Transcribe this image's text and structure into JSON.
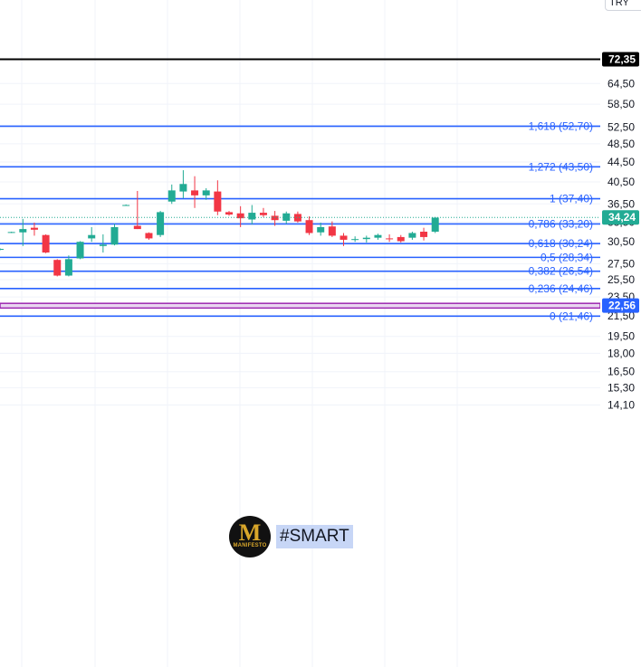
{
  "currency_selector": {
    "label": "TRY"
  },
  "brand": {
    "logo_letter": "M",
    "logo_text": "MANIFESTO",
    "hashtag": "#SMART"
  },
  "colors": {
    "up": "#22ab94",
    "down": "#f23645",
    "fib": "#2962ff",
    "last_price": "#22ab94",
    "band": "#9c27b0",
    "top_line": "#000000"
  },
  "chart_data": {
    "type": "candlestick",
    "title": "",
    "xlabel": "",
    "ylabel": "",
    "y_scale": "log",
    "ylim": [
      13.5,
      76.5
    ],
    "grid": true,
    "y_ticks": [
      "64,50",
      "58,50",
      "52,50",
      "48,50",
      "44,50",
      "40,50",
      "36,50",
      "33,50",
      "30,50",
      "27,50",
      "25,50",
      "23,50",
      "21,50",
      "19,50",
      "18,00",
      "16,50",
      "15,30",
      "14,10"
    ],
    "y_tick_values": [
      64.5,
      58.5,
      52.5,
      48.5,
      44.5,
      40.5,
      36.5,
      33.5,
      30.5,
      27.5,
      25.5,
      23.5,
      21.5,
      19.5,
      18.0,
      16.5,
      15.3,
      14.1
    ],
    "fib_levels": [
      {
        "label": "1,618 (52,70)",
        "ratio": 1.618,
        "value": 52.7
      },
      {
        "label": "1,272 (43,50)",
        "ratio": 1.272,
        "value": 43.5
      },
      {
        "label": "1 (37,40)",
        "ratio": 1,
        "value": 37.4
      },
      {
        "label": "0,786 (33,20)",
        "ratio": 0.786,
        "value": 33.2
      },
      {
        "label": "0,618 (30,24)",
        "ratio": 0.618,
        "value": 30.24
      },
      {
        "label": "0,5 (28,34)",
        "ratio": 0.5,
        "value": 28.34
      },
      {
        "label": "0,382 (26,54)",
        "ratio": 0.382,
        "value": 26.54
      },
      {
        "label": "0,236 (24,46)",
        "ratio": 0.236,
        "value": 24.46
      },
      {
        "label": "0 (21,46)",
        "ratio": 0,
        "value": 21.46
      }
    ],
    "horizontal_lines": [
      {
        "value": 72.35,
        "label": "72,35"
      }
    ],
    "band": {
      "low": 22.3,
      "high": 22.8,
      "label": "22,56",
      "value": 22.56
    },
    "last_price": {
      "value": 34.24,
      "label": "34,24"
    },
    "candles": [
      {
        "o": 29.4,
        "h": 29.6,
        "l": 29.3,
        "c": 29.5
      },
      {
        "o": 31.9,
        "h": 32.0,
        "l": 31.8,
        "c": 31.95
      },
      {
        "o": 31.9,
        "h": 34.0,
        "l": 29.9,
        "c": 32.4
      },
      {
        "o": 32.6,
        "h": 33.4,
        "l": 31.4,
        "c": 32.3
      },
      {
        "o": 31.5,
        "h": 31.6,
        "l": 28.9,
        "c": 29.0
      },
      {
        "o": 28.0,
        "h": 28.1,
        "l": 25.9,
        "c": 26.0
      },
      {
        "o": 26.0,
        "h": 28.6,
        "l": 25.9,
        "c": 28.1
      },
      {
        "o": 28.2,
        "h": 30.6,
        "l": 28.1,
        "c": 30.5
      },
      {
        "o": 31.0,
        "h": 32.7,
        "l": 30.5,
        "c": 31.5
      },
      {
        "o": 29.9,
        "h": 31.6,
        "l": 29.0,
        "c": 30.1
      },
      {
        "o": 30.1,
        "h": 33.2,
        "l": 30.0,
        "c": 32.7
      },
      {
        "o": 36.3,
        "h": 36.4,
        "l": 36.2,
        "c": 36.3
      },
      {
        "o": 32.9,
        "h": 38.8,
        "l": 32.4,
        "c": 32.4
      },
      {
        "o": 31.8,
        "h": 31.9,
        "l": 30.8,
        "c": 31.0
      },
      {
        "o": 31.5,
        "h": 35.3,
        "l": 31.2,
        "c": 35.1
      },
      {
        "o": 36.9,
        "h": 40.0,
        "l": 36.5,
        "c": 38.9
      },
      {
        "o": 38.7,
        "h": 42.8,
        "l": 37.5,
        "c": 40.1
      },
      {
        "o": 38.9,
        "h": 41.6,
        "l": 35.8,
        "c": 38.0
      },
      {
        "o": 38.0,
        "h": 39.3,
        "l": 37.2,
        "c": 38.9
      },
      {
        "o": 38.7,
        "h": 40.8,
        "l": 34.6,
        "c": 35.2
      },
      {
        "o": 35.1,
        "h": 35.3,
        "l": 34.5,
        "c": 34.7
      },
      {
        "o": 34.9,
        "h": 36.1,
        "l": 32.7,
        "c": 34.1
      },
      {
        "o": 33.9,
        "h": 36.3,
        "l": 33.1,
        "c": 35.0
      },
      {
        "o": 35.0,
        "h": 35.8,
        "l": 34.3,
        "c": 34.6
      },
      {
        "o": 34.5,
        "h": 35.3,
        "l": 32.9,
        "c": 33.8
      },
      {
        "o": 33.7,
        "h": 35.2,
        "l": 33.2,
        "c": 34.9
      },
      {
        "o": 34.8,
        "h": 35.2,
        "l": 33.4,
        "c": 33.6
      },
      {
        "o": 33.8,
        "h": 34.4,
        "l": 31.5,
        "c": 31.8
      },
      {
        "o": 31.9,
        "h": 33.4,
        "l": 31.4,
        "c": 32.7
      },
      {
        "o": 32.8,
        "h": 33.6,
        "l": 31.2,
        "c": 31.4
      },
      {
        "o": 31.4,
        "h": 31.8,
        "l": 29.9,
        "c": 30.8
      },
      {
        "o": 30.8,
        "h": 31.3,
        "l": 30.5,
        "c": 30.9
      },
      {
        "o": 30.9,
        "h": 31.4,
        "l": 30.4,
        "c": 31.1
      },
      {
        "o": 31.1,
        "h": 31.7,
        "l": 30.8,
        "c": 31.5
      },
      {
        "o": 31.0,
        "h": 31.6,
        "l": 30.5,
        "c": 30.9
      },
      {
        "o": 31.2,
        "h": 31.5,
        "l": 30.4,
        "c": 30.6
      },
      {
        "o": 31.1,
        "h": 32.0,
        "l": 30.8,
        "c": 31.8
      },
      {
        "o": 32.0,
        "h": 32.6,
        "l": 30.7,
        "c": 31.2
      },
      {
        "o": 32.0,
        "h": 34.3,
        "l": 31.8,
        "c": 34.2
      }
    ]
  }
}
